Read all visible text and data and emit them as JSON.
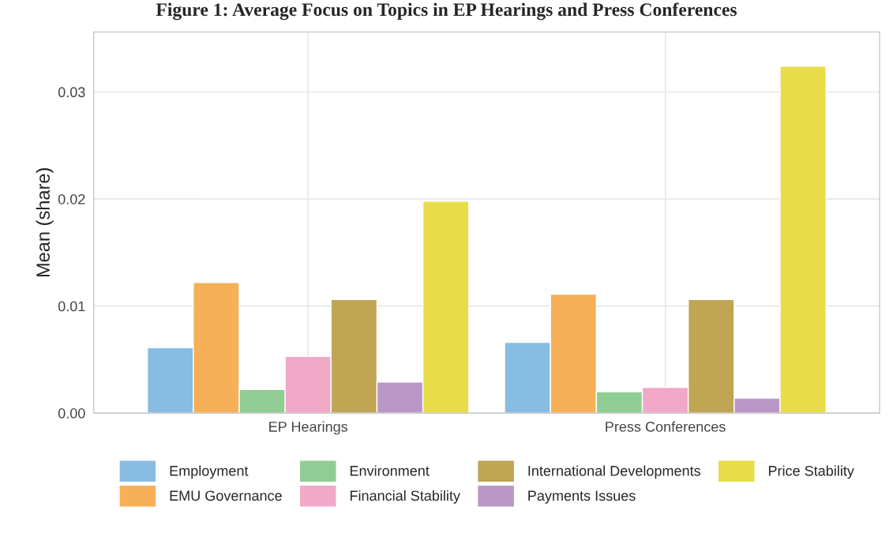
{
  "chart_data": {
    "type": "bar",
    "title": "Figure 1: Average Focus on Topics in EP Hearings and Press Conferences",
    "ylabel": "Mean (share)",
    "categories": [
      "EP Hearings",
      "Press Conferences"
    ],
    "series": [
      {
        "name": "Employment",
        "color": "#88bce2",
        "values": [
          0.0061,
          0.0066
        ]
      },
      {
        "name": "EMU Governance",
        "color": "#f6b058",
        "values": [
          0.0122,
          0.0111
        ]
      },
      {
        "name": "Environment",
        "color": "#90cd94",
        "values": [
          0.0022,
          0.002
        ]
      },
      {
        "name": "Financial Stability",
        "color": "#f2a9c8",
        "values": [
          0.0053,
          0.0024
        ]
      },
      {
        "name": "International Developments",
        "color": "#bfa554",
        "values": [
          0.0106,
          0.0106
        ]
      },
      {
        "name": "Payments Issues",
        "color": "#b998c6",
        "values": [
          0.0029,
          0.0014
        ]
      },
      {
        "name": "Price Stability",
        "color": "#e8dc48",
        "values": [
          0.0198,
          0.0324
        ]
      }
    ],
    "ylim": [
      0,
      0.0356
    ],
    "yticks": [
      {
        "value": 0,
        "label": "0.00"
      },
      {
        "value": 0.01,
        "label": "0.01"
      },
      {
        "value": 0.02,
        "label": "0.02"
      },
      {
        "value": 0.03,
        "label": "0.03"
      }
    ],
    "grid": true,
    "legend": "bottom"
  }
}
